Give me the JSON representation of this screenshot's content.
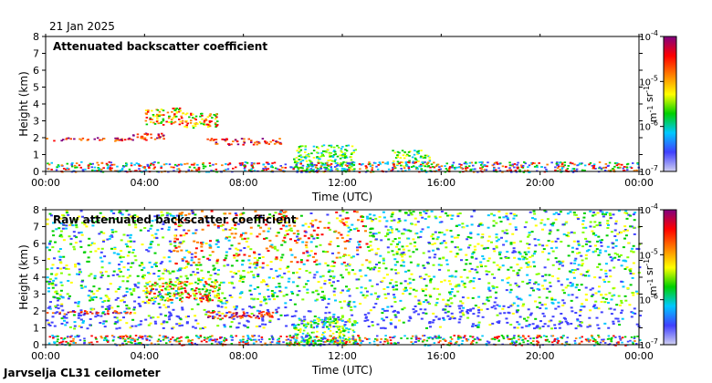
{
  "header": {
    "date": "21 Jan 2025"
  },
  "footer": {
    "station": "Jarvselja CL31 ceilometer"
  },
  "colorbar": {
    "ticks": [
      "10^-4",
      "10^-5",
      "10^-6",
      "10^-7"
    ],
    "unit": "m^-1 sr^-1",
    "scale": "log",
    "range": [
      1e-07,
      0.0001
    ],
    "colors": [
      "#d0d0f0",
      "#4040ff",
      "#00c8ff",
      "#00d000",
      "#ffff00",
      "#ff8000",
      "#ff0000",
      "#800080"
    ]
  },
  "chart_data": [
    {
      "type": "heatmap",
      "title": "Attenuated backscatter coefficient",
      "xlabel": "Time (UTC)",
      "ylabel": "Height (km)",
      "xticks": [
        "00:00",
        "04:00",
        "08:00",
        "12:00",
        "16:00",
        "20:00",
        "00:00"
      ],
      "yticks": [
        0,
        1,
        2,
        3,
        4,
        5,
        6,
        7,
        8
      ],
      "xlim": [
        "00:00",
        "24:00"
      ],
      "ylim": [
        0,
        8
      ],
      "layers": [
        {
          "feature": "cloud layer",
          "time": [
            "00:00",
            "03:30"
          ],
          "height_km": [
            1.85,
            2.05
          ]
        },
        {
          "feature": "cloud layer",
          "time": [
            "03:30",
            "05:00"
          ],
          "height_km": [
            1.9,
            2.3
          ]
        },
        {
          "feature": "cloud layer",
          "time": [
            "06:30",
            "09:30"
          ],
          "height_km": [
            1.6,
            2.0
          ]
        },
        {
          "feature": "elevated cloud",
          "time": [
            "04:00",
            "05:30"
          ],
          "height_km": [
            2.8,
            3.8
          ]
        },
        {
          "feature": "elevated cloud",
          "time": [
            "05:30",
            "07:00"
          ],
          "height_km": [
            2.6,
            3.5
          ]
        },
        {
          "feature": "precipitation / low cloud",
          "time": [
            "10:00",
            "12:30"
          ],
          "height_km": [
            0,
            1.6
          ]
        },
        {
          "feature": "aerosol layer",
          "time": [
            "14:00",
            "15:30"
          ],
          "height_km": [
            0.3,
            1.3
          ]
        },
        {
          "feature": "boundary layer",
          "time": [
            "00:00",
            "24:00"
          ],
          "height_km": [
            0,
            0.6
          ]
        }
      ]
    },
    {
      "type": "heatmap",
      "title": "Raw attenuated backscatter coefficient",
      "xlabel": "Time (UTC)",
      "ylabel": "Height (km)",
      "xticks": [
        "00:00",
        "04:00",
        "08:00",
        "12:00",
        "16:00",
        "20:00",
        "00:00"
      ],
      "yticks": [
        0,
        1,
        2,
        3,
        4,
        5,
        6,
        7,
        8
      ],
      "xlim": [
        "00:00",
        "24:00"
      ],
      "ylim": [
        0,
        8
      ],
      "layers": [
        {
          "feature": "noise background",
          "time": [
            "00:00",
            "24:00"
          ],
          "height_km": [
            1.0,
            8.0
          ]
        },
        {
          "feature": "cloud layer",
          "time": [
            "00:00",
            "03:30"
          ],
          "height_km": [
            1.85,
            2.05
          ]
        },
        {
          "feature": "cloud layer",
          "time": [
            "06:30",
            "09:30"
          ],
          "height_km": [
            1.6,
            2.0
          ]
        },
        {
          "feature": "elevated cloud",
          "time": [
            "04:00",
            "07:00"
          ],
          "height_km": [
            2.6,
            3.8
          ]
        },
        {
          "feature": "precipitation / low cloud",
          "time": [
            "10:00",
            "12:30"
          ],
          "height_km": [
            0,
            1.6
          ]
        },
        {
          "feature": "boundary layer",
          "time": [
            "00:00",
            "24:00"
          ],
          "height_km": [
            0,
            0.6
          ]
        }
      ]
    }
  ]
}
